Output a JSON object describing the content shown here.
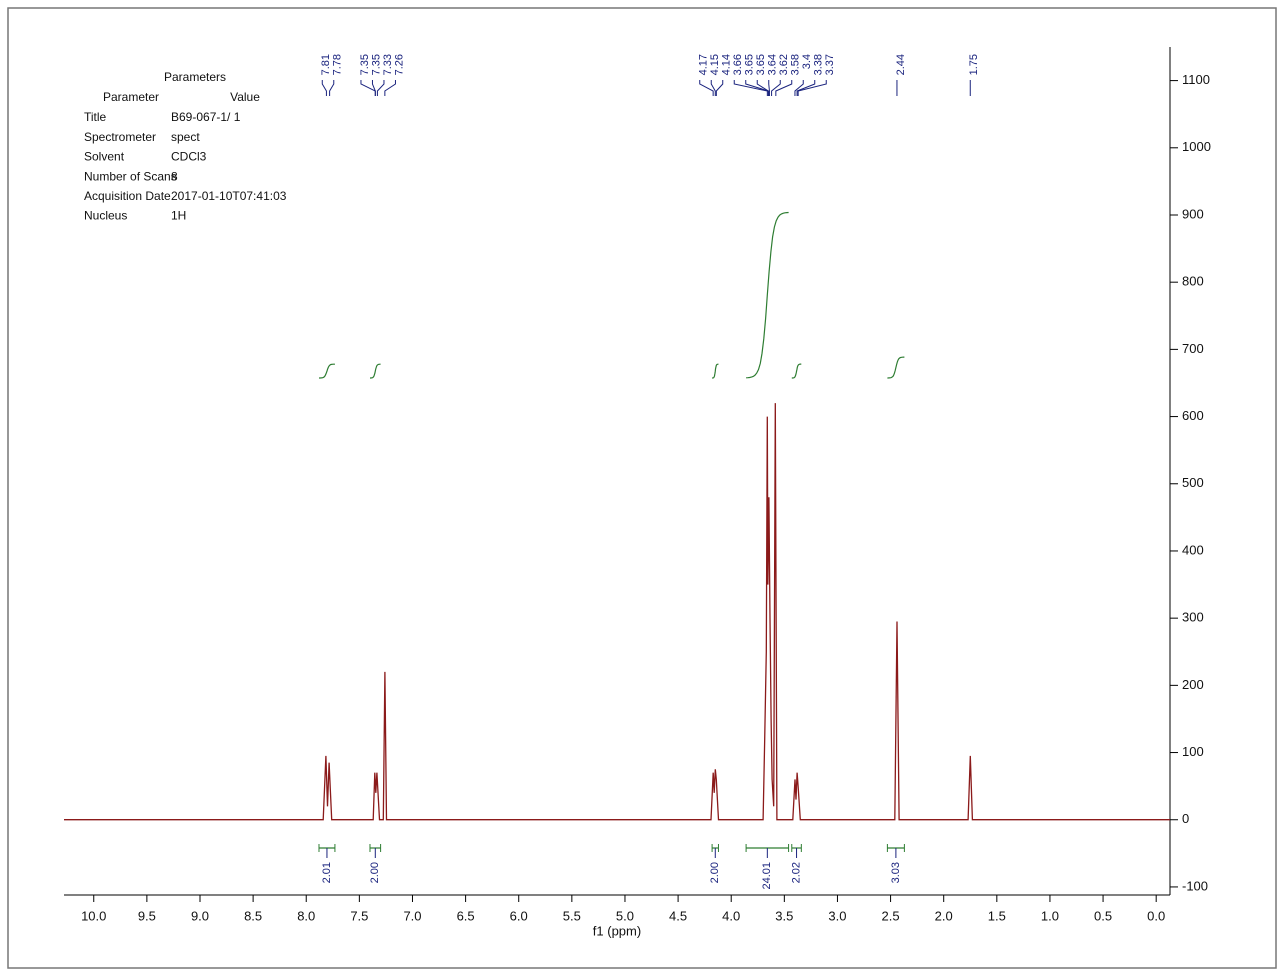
{
  "chart_data": {
    "type": "nmr",
    "x_label": "f1 (ppm)",
    "xlim": [
      10.28,
      -0.13
    ],
    "ylim": [
      -112,
      1150
    ],
    "xticks": [
      {
        "value": 10,
        "label": "10.0"
      },
      9.5,
      {
        "value": 9,
        "label": "9.0"
      },
      8.5,
      {
        "value": 8,
        "label": "8.0"
      },
      7.5,
      {
        "value": 7,
        "label": "7.0"
      },
      6.5,
      {
        "value": 6,
        "label": "6.0"
      },
      5.5,
      {
        "value": 5,
        "label": "5.0"
      },
      4.5,
      {
        "value": 4,
        "label": "4.0"
      },
      3.5,
      {
        "value": 3,
        "label": "3.0"
      },
      2.5,
      {
        "value": 2,
        "label": "2.0"
      },
      1.5,
      {
        "value": 1,
        "label": "1.0"
      },
      0.5,
      {
        "value": 0,
        "label": "0.0"
      }
    ],
    "yticks": [
      -100,
      0,
      100,
      200,
      300,
      400,
      500,
      600,
      700,
      800,
      900,
      1000,
      1100
    ],
    "series": [
      {
        "color": "#8b1a1a",
        "x": [
          10.28,
          7.84,
          7.815,
          7.8,
          7.785,
          7.76,
          7.37,
          7.355,
          7.345,
          7.335,
          7.31,
          7.275,
          7.26,
          7.245,
          4.19,
          4.17,
          4.16,
          4.15,
          4.14,
          4.12,
          3.7,
          3.685,
          3.67,
          3.66,
          3.655,
          3.645,
          3.635,
          3.625,
          3.615,
          3.6,
          3.585,
          3.57,
          3.42,
          3.4,
          3.39,
          3.38,
          3.37,
          3.35,
          2.46,
          2.44,
          2.42,
          1.77,
          1.75,
          1.73,
          -0.13
        ],
        "values": [
          0,
          0,
          95,
          20,
          85,
          0,
          0,
          70,
          40,
          70,
          0,
          0,
          220,
          0,
          0,
          70,
          40,
          75,
          60,
          0,
          0,
          120,
          250,
          600,
          350,
          480,
          300,
          150,
          60,
          20,
          620,
          0,
          0,
          60,
          30,
          70,
          50,
          0,
          0,
          295,
          0,
          0,
          95,
          0,
          0
        ]
      }
    ],
    "peak_labels": [
      7.81,
      7.78,
      7.35,
      7.35,
      7.33,
      7.26,
      4.17,
      4.15,
      4.14,
      3.66,
      3.65,
      3.65,
      3.64,
      3.62,
      3.58,
      3.4,
      3.38,
      3.37,
      2.44,
      1.75
    ],
    "integrals": [
      {
        "range": [
          7.88,
          7.73
        ],
        "value": 2.01
      },
      {
        "range": [
          7.4,
          7.3
        ],
        "value": {
          "value": 2,
          "label": "2.00"
        }
      },
      {
        "range": [
          4.18,
          4.12
        ],
        "value": {
          "value": 2,
          "label": "2.00"
        }
      },
      {
        "range": [
          3.86,
          3.46
        ],
        "value": 24.01
      },
      {
        "range": [
          3.43,
          3.34
        ],
        "value": 2.02
      },
      {
        "range": [
          2.53,
          2.37
        ],
        "value": 3.03
      }
    ],
    "parameters": {
      "title": "Parameters",
      "header": [
        "Parameter",
        "Value"
      ],
      "rows": [
        [
          "Title",
          "B69-067-1/ 1"
        ],
        [
          "Spectrometer",
          "spect"
        ],
        [
          "Solvent",
          "CDCl3"
        ],
        [
          "Number of Scans",
          "8"
        ],
        [
          "Acquisition Date",
          "2017-01-10T07:41:03"
        ],
        [
          "Nucleus",
          "1H"
        ]
      ]
    }
  }
}
